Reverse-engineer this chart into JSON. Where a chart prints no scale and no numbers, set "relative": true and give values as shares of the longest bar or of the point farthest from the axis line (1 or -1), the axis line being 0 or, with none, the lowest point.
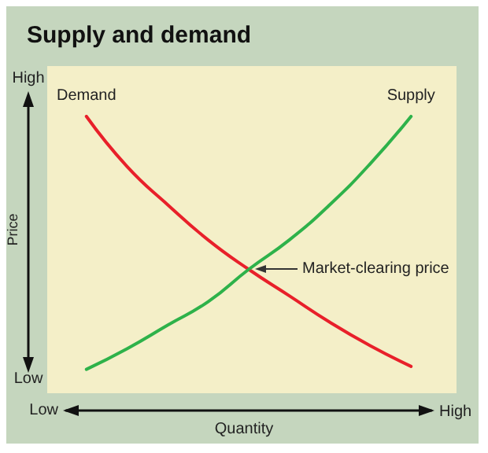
{
  "chart_data": {
    "type": "line",
    "title": "Supply and demand",
    "xlabel": "Quantity",
    "ylabel": "Price",
    "relative": true,
    "marker": "none",
    "line_style": "solid",
    "categories": [
      null,
      null,
      null,
      null,
      null,
      null,
      null,
      null,
      null
    ],
    "series": [
      {
        "name": "Demand",
        "color": "#e8202a",
        "values": [
          1.0,
          0.83,
          0.7,
          0.58,
          0.48,
          0.39,
          0.3,
          0.22,
          0.15
        ]
      },
      {
        "name": "Supply",
        "color": "#2eb24a",
        "values": [
          0.14,
          0.21,
          0.29,
          0.37,
          0.48,
          0.58,
          0.7,
          0.84,
          1.0
        ]
      }
    ],
    "annotations": [
      "High",
      "Low",
      "Low",
      "High",
      {
        "text": "Market-clearing price"
      }
    ]
  }
}
